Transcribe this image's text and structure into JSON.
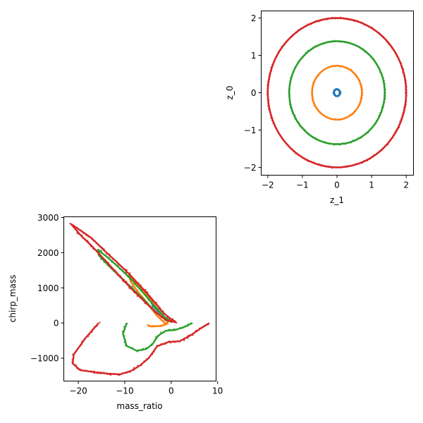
{
  "colors": {
    "series": [
      "#1f77b4",
      "#ff7f0e",
      "#2ca02c",
      "#d62728"
    ]
  },
  "chart_data": [
    {
      "type": "scatter",
      "position": "top-right",
      "xlabel": "z_1",
      "ylabel": "z_0",
      "xlim": [
        -2.2,
        2.2
      ],
      "ylim": [
        -2.2,
        2.2
      ],
      "xticks": [
        -2,
        -1,
        0,
        1,
        2
      ],
      "yticks": [
        -2,
        -1,
        0,
        1,
        2
      ],
      "grid": false,
      "series": [
        {
          "color": "#1f77b4",
          "shape": "ring",
          "rx": 0.09,
          "ry": 0.09
        },
        {
          "color": "#ff7f0e",
          "shape": "ring",
          "rx": 0.72,
          "ry": 0.72
        },
        {
          "color": "#2ca02c",
          "shape": "ring",
          "rx": 1.38,
          "ry": 1.38
        },
        {
          "color": "#d62728",
          "shape": "ring",
          "rx": 2.0,
          "ry": 2.0
        }
      ]
    },
    {
      "type": "scatter",
      "position": "bottom-left",
      "xlabel": "mass_ratio",
      "ylabel": "chirp_mass",
      "xlim": [
        -23.2,
        9.6
      ],
      "ylim": [
        -1640,
        3030
      ],
      "xticks": [
        -20,
        -10,
        0,
        10
      ],
      "yticks": [
        -1000,
        0,
        1000,
        2000,
        3000
      ],
      "grid": false,
      "series": [
        {
          "color": "#1f77b4",
          "curves": [
            [
              [
                -4.8,
                700
              ],
              [
                -3.6,
                480
              ],
              [
                -2.6,
                330
              ],
              [
                -2.0,
                230
              ],
              [
                -2.6,
                300
              ],
              [
                -3.8,
                470
              ],
              [
                -4.8,
                700
              ]
            ]
          ]
        },
        {
          "color": "#ff7f0e",
          "curves": [
            [
              [
                -9.2,
                1370
              ],
              [
                -7.6,
                1150
              ],
              [
                -6.0,
                940
              ],
              [
                -4.2,
                620
              ],
              [
                -2.2,
                260
              ],
              [
                -0.6,
                40
              ],
              [
                -1.2,
                -20
              ],
              [
                -3.0,
                200
              ],
              [
                -5.0,
                540
              ],
              [
                -7.0,
                860
              ],
              [
                -8.6,
                1150
              ],
              [
                -9.2,
                1370
              ]
            ],
            [
              [
                -5.0,
                -60
              ],
              [
                -4.2,
                -100
              ],
              [
                -3.0,
                -90
              ],
              [
                -1.6,
                -60
              ],
              [
                -0.6,
                0
              ]
            ]
          ]
        },
        {
          "color": "#2ca02c",
          "curves": [
            [
              [
                -15.9,
                2090
              ],
              [
                -13.8,
                1880
              ],
              [
                -11.2,
                1570
              ],
              [
                -8.6,
                1240
              ],
              [
                -6.0,
                860
              ],
              [
                -3.6,
                480
              ],
              [
                -1.4,
                170
              ],
              [
                0.0,
                40
              ],
              [
                -1.2,
                90
              ],
              [
                -3.2,
                300
              ],
              [
                -5.6,
                620
              ],
              [
                -8.2,
                960
              ],
              [
                -10.8,
                1290
              ],
              [
                -13.4,
                1620
              ],
              [
                -15.6,
                1930
              ],
              [
                -15.9,
                2090
              ]
            ],
            [
              [
                -9.6,
                0
              ],
              [
                -10.4,
                -300
              ],
              [
                -9.6,
                -650
              ],
              [
                -7.4,
                -790
              ],
              [
                -5.4,
                -740
              ],
              [
                -4.0,
                -600
              ],
              [
                -2.8,
                -360
              ],
              [
                -1.2,
                -220
              ],
              [
                0.8,
                -200
              ],
              [
                2.6,
                -120
              ],
              [
                4.6,
                0
              ]
            ]
          ]
        },
        {
          "color": "#d62728",
          "curves": [
            [
              [
                -21.6,
                2820
              ],
              [
                -19.6,
                2640
              ],
              [
                -17.2,
                2420
              ],
              [
                -14.4,
                2060
              ],
              [
                -11.6,
                1720
              ],
              [
                -8.8,
                1360
              ],
              [
                -6.0,
                960
              ],
              [
                -3.6,
                600
              ],
              [
                -1.6,
                280
              ],
              [
                0.2,
                90
              ],
              [
                1.0,
                20
              ],
              [
                -1.0,
                80
              ],
              [
                -3.2,
                290
              ],
              [
                -5.8,
                620
              ],
              [
                -8.6,
                980
              ],
              [
                -11.4,
                1380
              ],
              [
                -14.2,
                1780
              ],
              [
                -16.8,
                2150
              ],
              [
                -19.4,
                2480
              ],
              [
                -21.6,
                2820
              ]
            ],
            [
              [
                -15.6,
                0
              ],
              [
                -18.4,
                -420
              ],
              [
                -21.0,
                -900
              ],
              [
                -21.2,
                -1150
              ],
              [
                -19.6,
                -1340
              ],
              [
                -16.4,
                -1400
              ],
              [
                -13.6,
                -1440
              ],
              [
                -11.0,
                -1460
              ],
              [
                -8.6,
                -1360
              ],
              [
                -6.6,
                -1200
              ],
              [
                -4.8,
                -990
              ],
              [
                -3.0,
                -660
              ],
              [
                -0.6,
                -540
              ],
              [
                1.8,
                -520
              ],
              [
                4.2,
                -350
              ],
              [
                6.4,
                -150
              ],
              [
                8.2,
                0
              ]
            ]
          ]
        }
      ]
    }
  ]
}
